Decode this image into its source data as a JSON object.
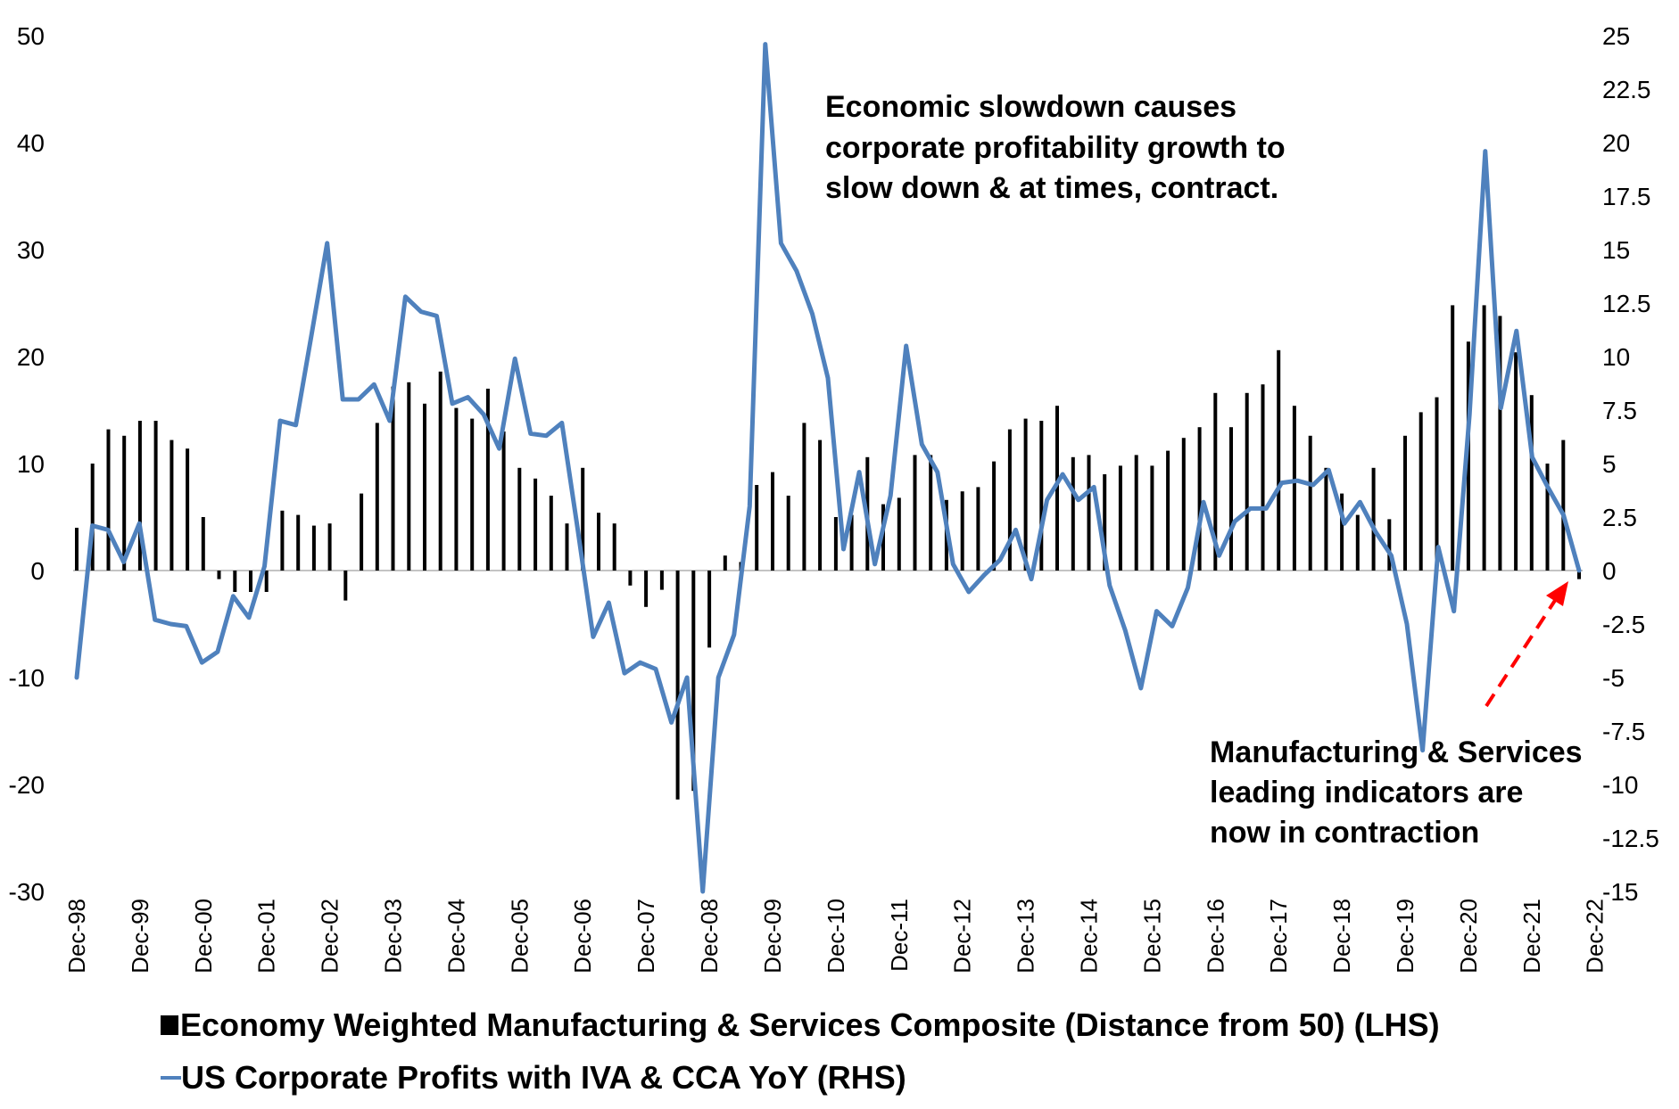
{
  "chart_data": {
    "type": "bar+line",
    "title": "",
    "xlabel": "",
    "ylabel_left": "",
    "ylabel_right": "",
    "ylim_left": [
      -30,
      50
    ],
    "ylim_right": [
      -15,
      25
    ],
    "yticks_left": [
      50,
      40,
      30,
      20,
      10,
      0,
      -10,
      -20,
      -30
    ],
    "yticks_right": [
      "25",
      "22.5",
      "20",
      "17.5",
      "15",
      "12.5",
      "10",
      "7.5",
      "5",
      "2.5",
      "0",
      "-2.5",
      "-5",
      "-7.5",
      "-10",
      "-12.5",
      "-15"
    ],
    "yticks_right_values": [
      25,
      22.5,
      20,
      17.5,
      15,
      12.5,
      10,
      7.5,
      5,
      2.5,
      0,
      -2.5,
      -5,
      -7.5,
      -10,
      -12.5,
      -15
    ],
    "x_labels": [
      "Dec-98",
      "Dec-99",
      "Dec-00",
      "Dec-01",
      "Dec-02",
      "Dec-03",
      "Dec-04",
      "Dec-05",
      "Dec-06",
      "Dec-07",
      "Dec-08",
      "Dec-09",
      "Dec-10",
      "Dec-11",
      "Dec-12",
      "Dec-13",
      "Dec-14",
      "Dec-15",
      "Dec-16",
      "Dec-17",
      "Dec-18",
      "Dec-19",
      "Dec-20",
      "Dec-21",
      "Dec-22"
    ],
    "periods_per_label": 4,
    "series": [
      {
        "name": "Economy Weighted Manufacturing & Services Composite (Distance from 50) (LHS)",
        "type": "bar",
        "axis": "left",
        "color": "#000000",
        "values": [
          4,
          10,
          13.2,
          12.6,
          14,
          14,
          12.2,
          11.4,
          5,
          -0.8,
          -2,
          -2,
          -2,
          5.6,
          5.2,
          4.2,
          4.4,
          -2.8,
          7.2,
          13.8,
          17.2,
          17.6,
          15.6,
          18.6,
          15.2,
          14.2,
          17,
          13,
          9.6,
          8.6,
          7,
          4.4,
          9.6,
          5.4,
          4.4,
          -1.4,
          -3.4,
          -1.8,
          -21.4,
          -20.6,
          -7.2,
          1.4,
          0.8,
          8,
          9.2,
          7,
          13.8,
          12.2,
          5,
          5.2,
          10.6,
          6.2,
          6.8,
          10.8,
          10.8,
          6.6,
          7.4,
          7.8,
          10.2,
          13.2,
          14.2,
          14,
          15.4,
          10.6,
          10.8,
          9,
          9.8,
          10.8,
          9.8,
          11.2,
          12.4,
          13.4,
          16.6,
          13.4,
          16.6,
          17.4,
          20.6,
          15.4,
          12.6,
          9.6,
          7.2,
          5.2,
          9.6,
          4.8,
          12.6,
          14.8,
          16.2,
          24.8,
          21.4,
          24.8,
          23.8,
          20.4,
          16.4,
          10,
          12.2,
          -0.8
        ]
      },
      {
        "name": "US Corporate Profits with IVA & CCA YoY (RHS)",
        "type": "line",
        "axis": "right",
        "color": "#4f81bd",
        "values": [
          -5,
          2.1,
          1.9,
          0.4,
          2.2,
          -2.3,
          -2.5,
          -2.6,
          -4.3,
          -3.8,
          -1.2,
          -2.2,
          0.2,
          7,
          6.8,
          11,
          15.3,
          8,
          8,
          8.7,
          7,
          12.8,
          12.1,
          11.9,
          7.8,
          8.1,
          7.3,
          5.7,
          9.9,
          6.4,
          6.3,
          6.9,
          2,
          -3.1,
          -1.5,
          -4.8,
          -4.3,
          -4.6,
          -7.1,
          -5,
          -15,
          -5,
          -3,
          3,
          24.6,
          15.3,
          14,
          12,
          9,
          1,
          4.6,
          0.3,
          3.5,
          10.5,
          5.9,
          4.6,
          0.3,
          -1,
          -0.2,
          0.5,
          1.9,
          -0.4,
          3.3,
          4.5,
          3.3,
          3.9,
          -0.7,
          -2.8,
          -5.5,
          -1.9,
          -2.6,
          -0.8,
          3.2,
          0.7,
          2.3,
          2.9,
          2.9,
          4.1,
          4.2,
          4,
          4.7,
          2.2,
          3.2,
          1.8,
          0.7,
          -2.5,
          -8.4,
          1.1,
          -1.9,
          7.3,
          19.6,
          7.6,
          11.2,
          5.3,
          3.9,
          2.6,
          0
        ]
      }
    ],
    "annotations": [
      {
        "lines": [
          "Economic slowdown causes",
          "corporate profitability growth to",
          "slow down & at times,  contract."
        ]
      },
      {
        "lines": [
          "Manufacturing & Services",
          "leading indicators are",
          "now in contraction"
        ]
      }
    ],
    "legend_placement": "bottom",
    "arrow_color": "#ff0000"
  },
  "legend": {
    "bar_label": "Economy Weighted Manufacturing & Services Composite (Distance from 50) (LHS)",
    "line_label": "US Corporate Profits with IVA & CCA YoY (RHS)"
  }
}
